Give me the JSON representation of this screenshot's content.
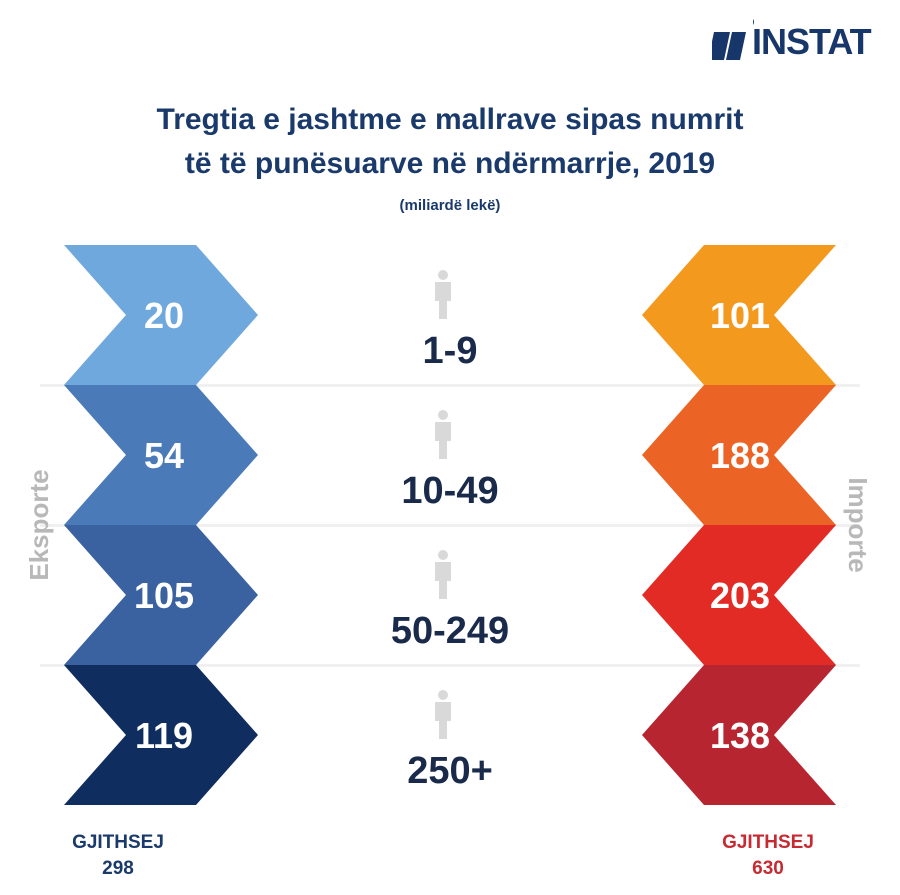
{
  "logo": {
    "text": "INSTAT"
  },
  "header": {
    "title_line1": "Tregtia e jashtme e mallrave sipas numrit",
    "title_line2": "të të punësuarve në ndërmarrje, 2019",
    "subtitle": "(miliardë lekë)"
  },
  "side_labels": {
    "left": "Eksporte",
    "right": "Importe"
  },
  "totals": {
    "left_label": "GJITHSEJ",
    "left_value": "298",
    "right_label": "GJITHSEJ",
    "right_value": "630"
  },
  "colors": {
    "exports": [
      "#6fa8dc",
      "#4a7ab8",
      "#3a62a0",
      "#0f2d5e"
    ],
    "imports": [
      "#f39a1e",
      "#ec6326",
      "#e32b26",
      "#b72531"
    ],
    "center_text": "#1a2a4a",
    "band": "#f0f0f0"
  },
  "chart_data": {
    "type": "table",
    "categories": [
      "1-9",
      "10-49",
      "50-249",
      "250+"
    ],
    "series": [
      {
        "name": "Eksporte",
        "values": [
          20,
          54,
          105,
          119
        ]
      },
      {
        "name": "Importe",
        "values": [
          101,
          188,
          203,
          138
        ]
      }
    ],
    "icons": [
      "person-icon",
      "person-icon",
      "person-icon",
      "person-icon"
    ]
  }
}
